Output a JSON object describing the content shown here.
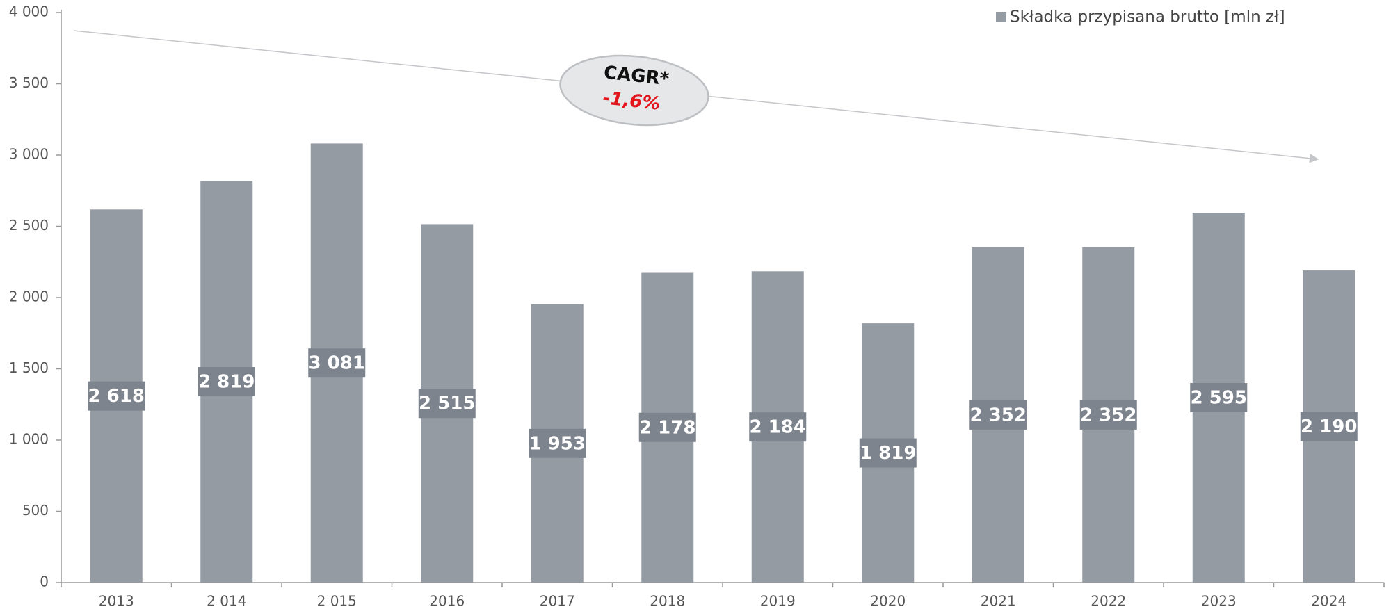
{
  "chart_data": {
    "type": "bar",
    "categories": [
      "2013",
      "2 014",
      "2 015",
      "2016",
      "2017",
      "2018",
      "2019",
      "2020",
      "2021",
      "2022",
      "2023",
      "2024"
    ],
    "series": [
      {
        "name": "Składka przypisana brutto [mln zł]",
        "color": "#959ba3",
        "values": [
          2618,
          2819,
          3081,
          2515,
          1953,
          2178,
          2184,
          1819,
          2352,
          2352,
          2595,
          2190
        ],
        "value_labels": [
          "2 618",
          "2 819",
          "3 081",
          "2 515",
          "1 953",
          "2 178",
          "2 184",
          "1 819",
          "2 352",
          "2 352",
          "2 595",
          "2 190"
        ]
      }
    ],
    "ylim": [
      0,
      4000
    ],
    "yticks": [
      0,
      500,
      {
        "value": 1000,
        "label": "1 000"
      },
      {
        "value": 1500,
        "label": "1 500"
      },
      {
        "value": 2000,
        "label": "2 000"
      },
      {
        "value": 2500,
        "label": "2 500"
      },
      {
        "value": 3000,
        "label": "3 000"
      },
      {
        "value": 3500,
        "label": "3 500"
      },
      {
        "value": 4000,
        "label": "4 000"
      }
    ],
    "annotations": {
      "title": "CAGR*",
      "value": "-1,6%"
    },
    "legend": "top-right",
    "grid": false
  }
}
